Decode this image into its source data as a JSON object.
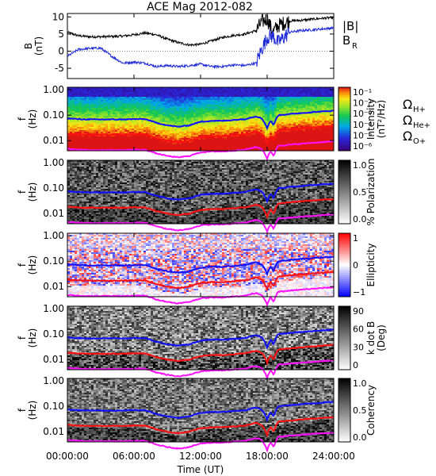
{
  "title": "ACE Mag 2012-082",
  "colors": {
    "total_field": "#000000",
    "radial_field": "#1f2bd6",
    "omega_h": "#1010ff",
    "omega_he": "#ff1010",
    "omega_o": "#ff10ff",
    "axes": "#000000"
  },
  "chart_data": [
    {
      "type": "line",
      "name": "field-panel",
      "ylabel": "B\n(nT)",
      "ylim": [
        -8,
        11
      ],
      "y_ticks": [
        "10",
        "5",
        "0",
        "-5"
      ],
      "legend": [
        {
          "label": "|B|",
          "color": "#000000"
        },
        {
          "label": "B",
          "subscript": "R",
          "color": "#1f2bd6"
        }
      ],
      "x_hours": [
        0,
        1,
        2,
        3,
        4,
        5,
        6,
        7,
        8,
        9,
        10,
        11,
        12,
        13,
        14,
        15,
        16,
        17,
        17.5,
        18,
        18.5,
        19,
        20,
        21,
        22,
        23,
        24
      ],
      "series": [
        {
          "values": [
            5.5,
            4.5,
            4.2,
            4.2,
            4.3,
            4.4,
            4.8,
            5.3,
            4.8,
            3.5,
            2.5,
            1.8,
            2.0,
            3.0,
            4.0,
            4.6,
            5.0,
            6.0,
            8.5,
            9.5,
            5.5,
            7.5,
            8.8,
            9.0,
            9.3,
            9.6,
            9.8
          ]
        },
        {
          "values": [
            -1.5,
            0.5,
            0.8,
            0.9,
            -1.5,
            -3.5,
            -3.2,
            -3.5,
            -4.5,
            -4.2,
            -4.5,
            -4.2,
            -3.8,
            -4.5,
            -4.5,
            -4.0,
            -4.2,
            -3.5,
            0.5,
            4.0,
            4.5,
            2.5,
            5.5,
            6.0,
            6.2,
            6.5,
            6.8
          ]
        }
      ]
    },
    {
      "type": "heatmap",
      "name": "intensity-panel",
      "ylabel": "f\n(Hz)",
      "y_ticks": [
        "1.00",
        "0.10",
        "0.01"
      ],
      "colorbar_label": "Intensity\n(nT²/Hz)",
      "colorbar_ticks": [
        "10⁻¹",
        "10⁻²",
        "10⁻³",
        "10⁻⁴",
        "10⁻⁵",
        "10⁻⁶"
      ],
      "colorbar_scale": "rainbow"
    },
    {
      "type": "heatmap",
      "name": "polarization-panel",
      "ylabel": "f\n(Hz)",
      "y_ticks": [
        "1.00",
        "0.10",
        "0.01"
      ],
      "colorbar_label": "% Polarization",
      "colorbar_ticks": [
        "1.0",
        "0.5",
        "0.0"
      ],
      "colorbar_scale": "grayscale"
    },
    {
      "type": "heatmap",
      "name": "ellipticity-panel",
      "ylabel": "f\n(Hz)",
      "y_ticks": [
        "1.00",
        "0.10",
        "0.01"
      ],
      "colorbar_label": "Ellipticity",
      "colorbar_ticks": [
        "1",
        "0",
        "−1"
      ],
      "colorbar_scale": "blue-white-red"
    },
    {
      "type": "heatmap",
      "name": "kdotb-panel",
      "ylabel": "f\n(Hz)",
      "y_ticks": [
        "1.00",
        "0.10",
        "0.01"
      ],
      "colorbar_label": "k dot B\n(Deg)",
      "colorbar_ticks": [
        "90",
        "60",
        "30",
        "0"
      ],
      "colorbar_scale": "grayscale"
    },
    {
      "type": "heatmap",
      "name": "coherency-panel",
      "ylabel": "f\n(Hz)",
      "y_ticks": [
        "1.00",
        "0.10",
        "0.01"
      ],
      "colorbar_label": "Coherency",
      "colorbar_ticks": [
        "1.0",
        "0.5",
        "0.0"
      ],
      "colorbar_scale": "grayscale"
    }
  ],
  "gyrofrequency_legend": [
    {
      "symbol": "Ω",
      "sub": "H+",
      "color": "#1010ff"
    },
    {
      "symbol": "Ω",
      "sub": "He+",
      "color": "#ff1010"
    },
    {
      "symbol": "Ω",
      "sub": "O+",
      "color": "#ff10ff"
    }
  ],
  "gyro_curves": {
    "x_hours": [
      0,
      1,
      2,
      3,
      4,
      5,
      6,
      7,
      7.5,
      8,
      9,
      10,
      11,
      12,
      13,
      14,
      15,
      16,
      17,
      17.5,
      18,
      18.3,
      18.6,
      19,
      20,
      21,
      22,
      23,
      24
    ],
    "h_hz": [
      0.075,
      0.07,
      0.068,
      0.068,
      0.068,
      0.068,
      0.07,
      0.07,
      0.06,
      0.05,
      0.04,
      0.035,
      0.04,
      0.055,
      0.06,
      0.06,
      0.065,
      0.07,
      0.09,
      0.075,
      0.03,
      0.06,
      0.04,
      0.1,
      0.11,
      0.12,
      0.13,
      0.14,
      0.15
    ]
  },
  "time_axis": {
    "label": "Time (UT)",
    "range_hours": [
      0,
      24
    ],
    "ticks": [
      {
        "hour": 0,
        "label": "00:00:00"
      },
      {
        "hour": 6,
        "label": "06:00:00"
      },
      {
        "hour": 12,
        "label": "12:00:00"
      },
      {
        "hour": 18,
        "label": "18:00:00"
      },
      {
        "hour": 24,
        "label": "24:00:00"
      }
    ]
  }
}
